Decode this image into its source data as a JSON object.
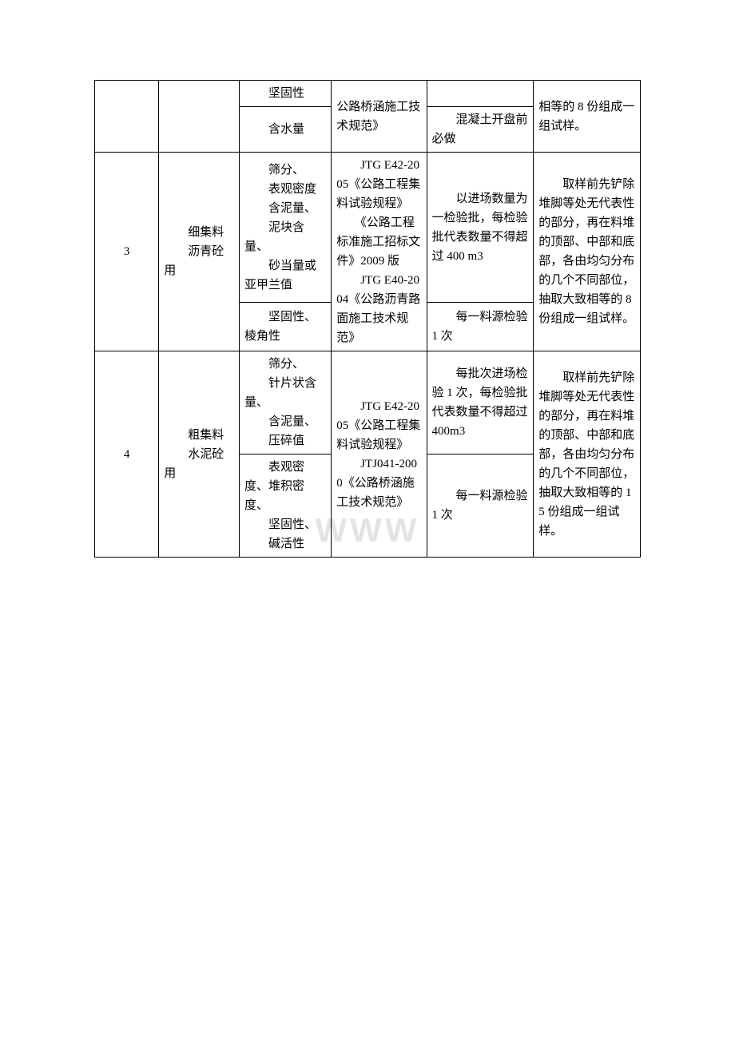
{
  "watermark": "WWW",
  "rows": {
    "r1": {
      "c3a": "　　坚固性",
      "c3b": "　　含水量",
      "c4": "公路桥涵施工技术规范》",
      "c5b": "　　混凝土开盘前必做",
      "c6": "相等的 8 份组成一组试样。"
    },
    "r2": {
      "c1": "3",
      "c2": "　　细集料\n　　沥青砼用",
      "c3a": "　　筛分、\n　　表观密度\n　　含泥量、\n　　泥块含量、\n　　砂当量或亚甲兰值",
      "c3b": "　　坚固性、棱角性",
      "c4": "　　JTG E42-2005《公路工程集料试验规程》\n　　《公路工程标准施工招标文件》2009 版\n　　JTG E40-2004《公路沥青路面施工技术规范》",
      "c5a": "　　以进场数量为一检验批，每检验批代表数量不得超过 400 m3",
      "c5b": "　　每一料源检验 1 次",
      "c6": "　　取样前先铲除堆脚等处无代表性的部分，再在料堆的顶部、中部和底部，各由均匀分布的几个不同部位，抽取大致相等的 8 份组成一组试样。"
    },
    "r3": {
      "c1": "4",
      "c2": "　　粗集料\n　　水泥砼用",
      "c3a": "　　筛分、\n　　针片状含量、\n　　含泥量、\n　　压碎值",
      "c3b": "　　表观密度、堆积密度、\n　　坚固性、\n　　碱活性",
      "c4": "　　JTG E42-2005《公路工程集料试验规程》\n　　JTJ041-2000《公路桥涵施工技术规范》",
      "c5a": "　　每批次进场检验 1 次，每检验批代表数量不得超过 400m3",
      "c5b": "　　每一料源检验 1 次",
      "c6": "　　取样前先铲除堆脚等处无代表性的部分，再在料堆的顶部、中部和底部，各由均匀分布的几个不同部位，抽取大致相等的 15 份组成一组试样。"
    }
  }
}
